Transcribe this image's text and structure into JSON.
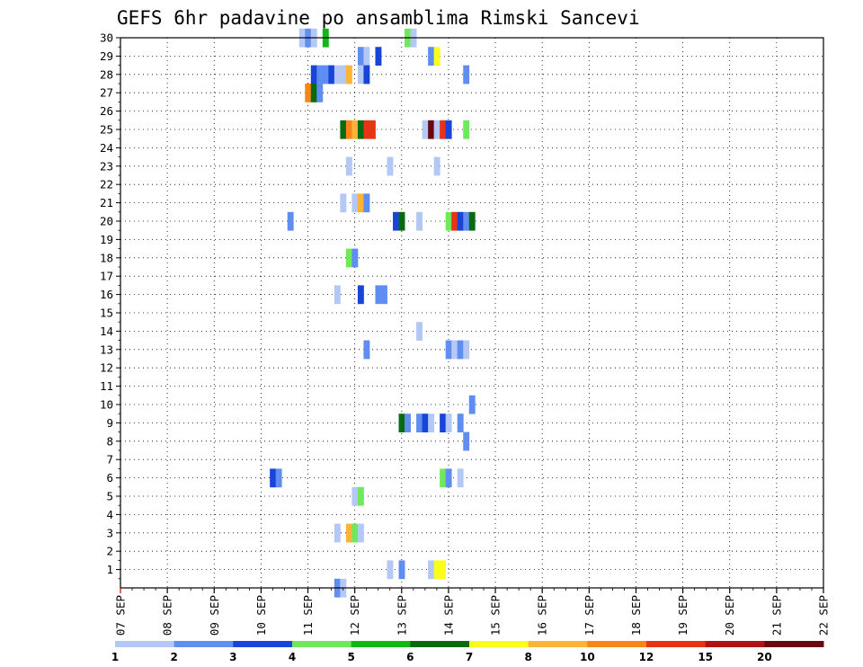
{
  "chart_data": {
    "type": "heatmap",
    "title": "GEFS 6hr padavine po ansamblima Rimski Sancevi",
    "x_categories": [
      "07 SEP",
      "08 SEP",
      "09 SEP",
      "10 SEP",
      "11 SEP",
      "12 SEP",
      "13 SEP",
      "14 SEP",
      "15 SEP",
      "16 SEP",
      "17 SEP",
      "18 SEP",
      "19 SEP",
      "20 SEP",
      "21 SEP",
      "22 SEP"
    ],
    "y_categories": [
      "1",
      "2",
      "3",
      "4",
      "5",
      "6",
      "7",
      "8",
      "9",
      "10",
      "11",
      "12",
      "13",
      "14",
      "15",
      "16",
      "17",
      "18",
      "19",
      "20",
      "21",
      "22",
      "23",
      "24",
      "25",
      "26",
      "27",
      "28",
      "29",
      "30"
    ],
    "steps_per_day": 4,
    "xlim_steps": [
      0,
      60
    ],
    "ylim": [
      0,
      30
    ],
    "grid": true,
    "legend": {
      "placement": "bottom",
      "labels": [
        "1",
        "2",
        "3",
        "4",
        "5",
        "6",
        "7",
        "8",
        "10",
        "12",
        "15",
        "20"
      ],
      "colors": [
        "#b3c8f5",
        "#5f8ef0",
        "#1844d9",
        "#6fe85c",
        "#10b814",
        "#0a6a12",
        "#fdfd1c",
        "#fbb436",
        "#f98516",
        "#e63415",
        "#b11218",
        "#6a0812"
      ]
    },
    "cells": [
      {
        "t": 15.5,
        "m": 30,
        "v": 1
      },
      {
        "t": 16,
        "m": 30,
        "v": 2
      },
      {
        "t": 16.5,
        "m": 30,
        "v": 1
      },
      {
        "t": 17.5,
        "m": 30,
        "v": 5
      },
      {
        "t": 24.5,
        "m": 30,
        "v": 4
      },
      {
        "t": 25,
        "m": 30,
        "v": 1
      },
      {
        "t": 20.5,
        "m": 29,
        "v": 2
      },
      {
        "t": 21,
        "m": 29,
        "v": 1
      },
      {
        "t": 22,
        "m": 29,
        "v": 3
      },
      {
        "t": 26.5,
        "m": 29,
        "v": 2
      },
      {
        "t": 27,
        "m": 29,
        "v": 7
      },
      {
        "t": 16.5,
        "m": 28,
        "v": 3
      },
      {
        "t": 17,
        "m": 28,
        "v": 2
      },
      {
        "t": 17.5,
        "m": 28,
        "v": 2
      },
      {
        "t": 18,
        "m": 28,
        "v": 3
      },
      {
        "t": 18.5,
        "m": 28,
        "v": 1
      },
      {
        "t": 19,
        "m": 28,
        "v": 1
      },
      {
        "t": 19.5,
        "m": 28,
        "v": 8
      },
      {
        "t": 20.5,
        "m": 28,
        "v": 1
      },
      {
        "t": 21,
        "m": 28,
        "v": 3
      },
      {
        "t": 29.5,
        "m": 28,
        "v": 2
      },
      {
        "t": 16,
        "m": 27,
        "v": 10
      },
      {
        "t": 16.5,
        "m": 27,
        "v": 6
      },
      {
        "t": 17,
        "m": 27,
        "v": 2
      },
      {
        "t": 19,
        "m": 25,
        "v": 6
      },
      {
        "t": 19.5,
        "m": 25,
        "v": 10
      },
      {
        "t": 20,
        "m": 25,
        "v": 8
      },
      {
        "t": 20.5,
        "m": 25,
        "v": 6
      },
      {
        "t": 21,
        "m": 25,
        "v": 12
      },
      {
        "t": 21.5,
        "m": 25,
        "v": 12
      },
      {
        "t": 26,
        "m": 25,
        "v": 1
      },
      {
        "t": 26.5,
        "m": 25,
        "v": 20
      },
      {
        "t": 27,
        "m": 25,
        "v": 1
      },
      {
        "t": 27.5,
        "m": 25,
        "v": 12
      },
      {
        "t": 28,
        "m": 25,
        "v": 3
      },
      {
        "t": 29.5,
        "m": 25,
        "v": 4
      },
      {
        "t": 19.5,
        "m": 23,
        "v": 1
      },
      {
        "t": 23,
        "m": 23,
        "v": 1
      },
      {
        "t": 27,
        "m": 23,
        "v": 1
      },
      {
        "t": 19,
        "m": 21,
        "v": 1
      },
      {
        "t": 20,
        "m": 21,
        "v": 1
      },
      {
        "t": 20.5,
        "m": 21,
        "v": 8
      },
      {
        "t": 21,
        "m": 21,
        "v": 2
      },
      {
        "t": 14.5,
        "m": 20,
        "v": 2
      },
      {
        "t": 23.5,
        "m": 20,
        "v": 3
      },
      {
        "t": 24,
        "m": 20,
        "v": 6
      },
      {
        "t": 25.5,
        "m": 20,
        "v": 1
      },
      {
        "t": 28,
        "m": 20,
        "v": 4
      },
      {
        "t": 28.5,
        "m": 20,
        "v": 12
      },
      {
        "t": 29,
        "m": 20,
        "v": 3
      },
      {
        "t": 29.5,
        "m": 20,
        "v": 2
      },
      {
        "t": 30,
        "m": 20,
        "v": 6
      },
      {
        "t": 19.5,
        "m": 18,
        "v": 4
      },
      {
        "t": 20,
        "m": 18,
        "v": 2
      },
      {
        "t": 18.5,
        "m": 16,
        "v": 1
      },
      {
        "t": 20.5,
        "m": 16,
        "v": 3
      },
      {
        "t": 22,
        "m": 16,
        "v": 2
      },
      {
        "t": 22.5,
        "m": 16,
        "v": 2
      },
      {
        "t": 25.5,
        "m": 14,
        "v": 1
      },
      {
        "t": 21,
        "m": 13,
        "v": 2
      },
      {
        "t": 28,
        "m": 13,
        "v": 2
      },
      {
        "t": 28.5,
        "m": 13,
        "v": 1
      },
      {
        "t": 29,
        "m": 13,
        "v": 2
      },
      {
        "t": 29.5,
        "m": 13,
        "v": 1
      },
      {
        "t": 30,
        "m": 10,
        "v": 2
      },
      {
        "t": 24,
        "m": 9,
        "v": 6
      },
      {
        "t": 24.5,
        "m": 9,
        "v": 2
      },
      {
        "t": 25.5,
        "m": 9,
        "v": 2
      },
      {
        "t": 26,
        "m": 9,
        "v": 3
      },
      {
        "t": 26.5,
        "m": 9,
        "v": 1
      },
      {
        "t": 27.5,
        "m": 9,
        "v": 3
      },
      {
        "t": 28,
        "m": 9,
        "v": 1
      },
      {
        "t": 29,
        "m": 9,
        "v": 2
      },
      {
        "t": 29.5,
        "m": 8,
        "v": 2
      },
      {
        "t": 13,
        "m": 6,
        "v": 3
      },
      {
        "t": 13.5,
        "m": 6,
        "v": 2
      },
      {
        "t": 27.5,
        "m": 6,
        "v": 4
      },
      {
        "t": 28,
        "m": 6,
        "v": 2
      },
      {
        "t": 29,
        "m": 6,
        "v": 1
      },
      {
        "t": 20,
        "m": 5,
        "v": 1
      },
      {
        "t": 20.5,
        "m": 5,
        "v": 4
      },
      {
        "t": 18.5,
        "m": 3,
        "v": 1
      },
      {
        "t": 19.5,
        "m": 3,
        "v": 8
      },
      {
        "t": 20,
        "m": 3,
        "v": 4
      },
      {
        "t": 20.5,
        "m": 3,
        "v": 1
      },
      {
        "t": 18.5,
        "m": 0,
        "v": 2
      },
      {
        "t": 19,
        "m": 0,
        "v": 1
      },
      {
        "t": 23,
        "m": 1,
        "v": 1
      },
      {
        "t": 24,
        "m": 1,
        "v": 2
      },
      {
        "t": 26.5,
        "m": 1,
        "v": 1
      },
      {
        "t": 27,
        "m": 1,
        "v": 7
      },
      {
        "t": 27.5,
        "m": 1,
        "v": 7
      }
    ]
  }
}
